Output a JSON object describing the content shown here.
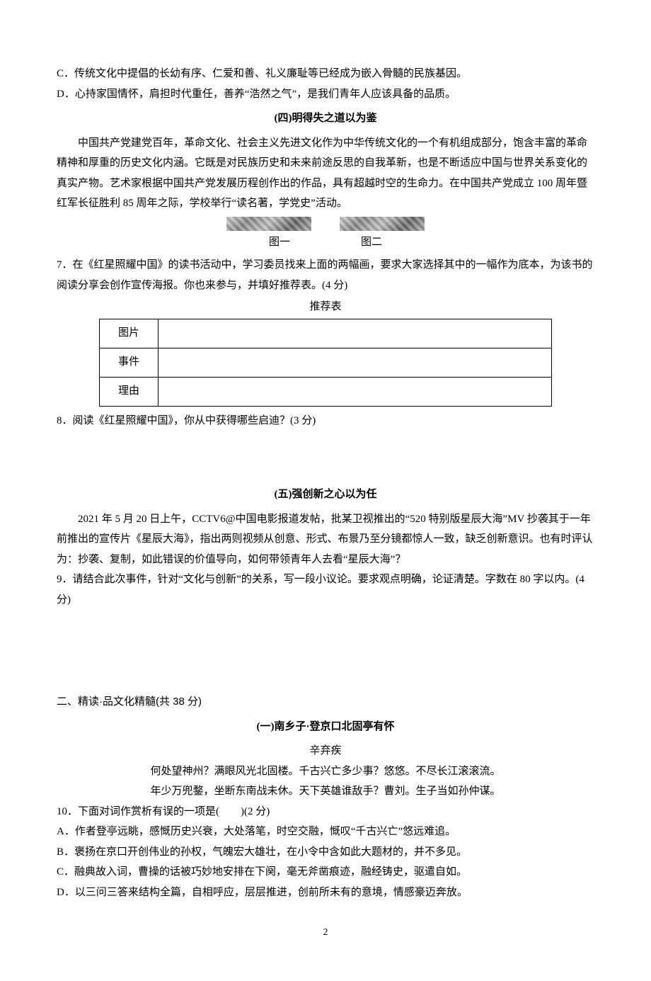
{
  "options_top": {
    "C": "C．传统文化中提倡的长幼有序、仁爱和善、礼义廉耻等已经成为嵌入骨髓的民族基因。",
    "D": "D．心持家国情怀，肩担时代重任，善养“浩然之气”，是我们青年人应该具备的品质。"
  },
  "section4": {
    "title": "(四)明得失之道以为鉴",
    "para": "中国共产党建党百年，革命文化、社会主义先进文化作为中华传统文化的一个有机组成部分，饱含丰富的革命精神和厚重的历史文化内涵。它既是对民族历史和未来前途反思的自我革新，也是不断适应中国与世界关系变化的真实产物。艺术家根据中国共产党发展历程创作出的作品，具有超越时空的生命力。在中国共产党成立 100 周年暨红军长征胜利 85 周年之际，学校举行“读名著，学党史”活动。",
    "figure1_label": "图一",
    "figure2_label": "图二",
    "q7": "7．在《红星照耀中国》的读书活动中，学习委员找来上面的两幅画，要求大家选择其中的一幅作为底本，为该书的阅读分享会创作宣传海报。你也来参与，并填好推荐表。(4 分)",
    "table_caption": "推荐表",
    "table_rows": [
      "图片",
      "事件",
      "理由"
    ],
    "q8": "8．阅读《红星照耀中国》，你从中获得哪些启迪？(3 分)"
  },
  "section5": {
    "title": "(五)强创新之心以为任",
    "para": "2021 年 5 月 20 日上午，CCTV6@中国电影报道发帖，批某卫视推出的“520 特别版星辰大海”MV 抄袭其于一年前推出的宣传片《星辰大海》，指出两则视频从创意、形式、布景乃至分镜都惊人一致，缺乏创新意识。也有时评认为：抄袭、复制，如此错误的价值导向，如何带领青年人去看“星辰大海”？",
    "q9": "9．请结合此次事件，针对“文化与创新”的关系，写一段小议论。要求观点明确，论证清楚。字数在 80 字以内。(4 分)"
  },
  "part2": {
    "heading": "二、精读·品文化精髓(共 38 分)",
    "subsection_title": "(一)南乡子·登京口北固亭有怀",
    "author": "辛弃疾",
    "poem_line1": "何处望神州？满眼风光北固楼。千古兴亡多少事？悠悠。不尽长江滚滚流。",
    "poem_line2": "年少万兜鍪，坐断东南战未休。天下英雄谁敌手？曹刘。生子当如孙仲谋。",
    "q10": "10．下面对词作赏析有误的一项是(　　)(2 分)",
    "options": {
      "A": "A．作者登亭远眺，感慨历史兴衰，大处落笔，时空交融，慨叹“千古兴亡”悠远难追。",
      "B": "B．褒扬在京口开创伟业的孙权，气魄宏大雄壮，在小令中含如此大题材的，并不多见。",
      "C": "C．融典故入词，曹操的话被巧妙地安排在下阕，毫无斧凿痕迹，融经铸史，驱遣自如。",
      "D": "D．以三问三答来结构全篇，自相呼应，层层推进，创前所未有的意境，情感豪迈奔放。"
    }
  },
  "page_number": "2"
}
